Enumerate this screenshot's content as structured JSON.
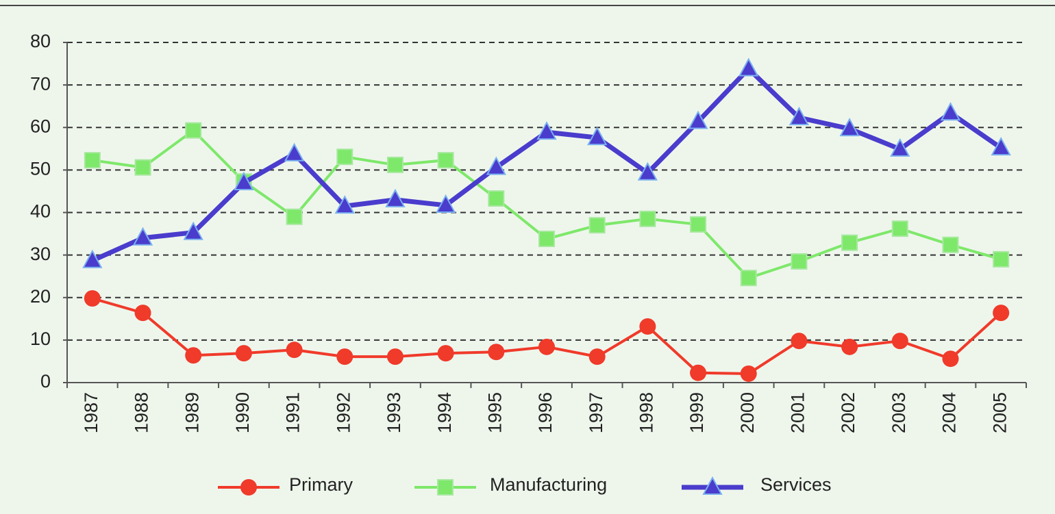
{
  "chart_data": {
    "type": "line",
    "categories": [
      "1987",
      "1988",
      "1989",
      "1990",
      "1991",
      "1992",
      "1993",
      "1994",
      "1995",
      "1996",
      "1997",
      "1998",
      "1999",
      "2000",
      "2001",
      "2002",
      "2003",
      "2004",
      "2005"
    ],
    "series": [
      {
        "name": "Primary",
        "color": "#f03a2a",
        "marker": "circle",
        "values": [
          19.8,
          16.4,
          6.4,
          6.9,
          7.7,
          6.1,
          6.1,
          6.9,
          7.2,
          8.4,
          6.1,
          13.2,
          2.3,
          2.1,
          9.8,
          8.4,
          9.8,
          5.6,
          16.4
        ]
      },
      {
        "name": "Manufacturing",
        "color": "#7ee86a",
        "marker": "square",
        "values": [
          52.3,
          50.6,
          59.3,
          47.3,
          39,
          53.1,
          51.2,
          52.3,
          43.3,
          33.8,
          37,
          38.5,
          37.2,
          24.6,
          28.5,
          32.9,
          36.2,
          32.4,
          29
        ]
      },
      {
        "name": "Services",
        "color": "#4a3ccc",
        "marker": "triangle",
        "values": [
          28.7,
          34,
          35.3,
          47,
          53.8,
          41.5,
          43,
          41.7,
          50.6,
          58.9,
          57.6,
          49.3,
          61.4,
          73.8,
          62.3,
          59.7,
          54.9,
          63.4,
          55.2
        ]
      }
    ],
    "ylim": [
      0,
      80
    ],
    "yticks": [
      0,
      10,
      20,
      30,
      40,
      50,
      60,
      70,
      80
    ],
    "grid": true,
    "legend": "bottom"
  }
}
